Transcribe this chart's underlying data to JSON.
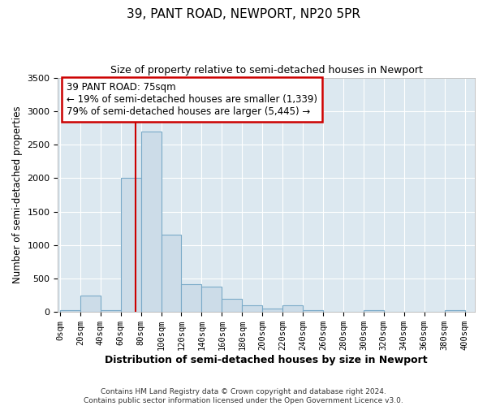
{
  "title": "39, PANT ROAD, NEWPORT, NP20 5PR",
  "subtitle": "Size of property relative to semi-detached houses in Newport",
  "xlabel": "Distribution of semi-detached houses by size in Newport",
  "ylabel": "Number of semi-detached properties",
  "bar_color": "#ccdce8",
  "bar_edge_color": "#7aaac8",
  "background_color": "#dce8f0",
  "grid_color": "#ffffff",
  "annotation_line_color": "#cc0000",
  "property_line_x": 75,
  "annotation_text_line1": "39 PANT ROAD: 75sqm",
  "annotation_text_line2": "← 19% of semi-detached houses are smaller (1,339)",
  "annotation_text_line3": "79% of semi-detached houses are larger (5,445) →",
  "annotation_box_color": "#ffffff",
  "annotation_box_edge": "#cc0000",
  "bin_left_edges": [
    0,
    20,
    40,
    60,
    80,
    100,
    120,
    140,
    160,
    180,
    200,
    220,
    240,
    260,
    280,
    300,
    320,
    340,
    360,
    380
  ],
  "bin_heights": [
    30,
    250,
    30,
    2000,
    2700,
    1150,
    420,
    380,
    200,
    100,
    50,
    100,
    30,
    5,
    5,
    30,
    5,
    5,
    5,
    30
  ],
  "ylim": [
    0,
    3500
  ],
  "xlim": [
    -2,
    410
  ],
  "yticks": [
    0,
    500,
    1000,
    1500,
    2000,
    2500,
    3000,
    3500
  ],
  "tick_positions": [
    0,
    20,
    40,
    60,
    80,
    100,
    120,
    140,
    160,
    180,
    200,
    220,
    240,
    260,
    280,
    300,
    320,
    340,
    360,
    380,
    400
  ],
  "tick_labels": [
    "0sqm",
    "20sqm",
    "40sqm",
    "60sqm",
    "80sqm",
    "100sqm",
    "120sqm",
    "140sqm",
    "160sqm",
    "180sqm",
    "200sqm",
    "220sqm",
    "240sqm",
    "260sqm",
    "280sqm",
    "300sqm",
    "320sqm",
    "340sqm",
    "360sqm",
    "380sqm",
    "400sqm"
  ],
  "footer_line1": "Contains HM Land Registry data © Crown copyright and database right 2024.",
  "footer_line2": "Contains public sector information licensed under the Open Government Licence v3.0."
}
